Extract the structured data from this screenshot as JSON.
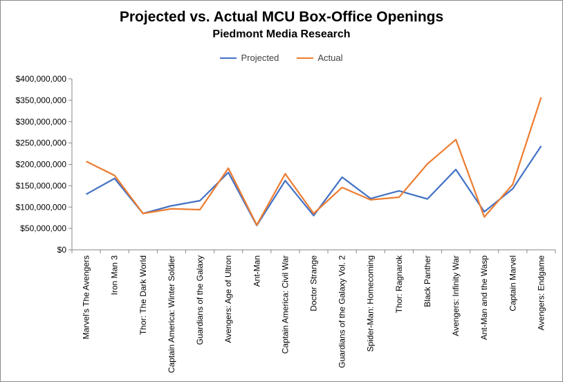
{
  "chart_data": {
    "type": "line",
    "title": "Projected vs. Actual MCU Box-Office Openings",
    "subtitle": "Piedmont Media Research",
    "xlabel": "",
    "ylabel": "",
    "ylim": [
      0,
      400000000
    ],
    "yticks": [
      "$0",
      "$50,000,000",
      "$100,000,000",
      "$150,000,000",
      "$200,000,000",
      "$250,000,000",
      "$300,000,000",
      "$350,000,000",
      "$400,000,000"
    ],
    "grid": false,
    "legend_position": "top",
    "categories": [
      "Marvel's The Avengers",
      "Iron Man 3",
      "Thor: The Dark World",
      "Captain America: Winter Soldier",
      "Guardians of the Galaxy",
      "Avengers: Age of Ultron",
      "Ant-Man",
      "Captain America: Civil War",
      "Doctor Strange",
      "Guardians of the Galaxy Vol. 2",
      "Spider-Man: Homecoming",
      "Thor: Ragnarok",
      "Black Panther",
      "Avengers: Infinity War",
      "Ant-Man and the Wasp",
      "Captain Marvel",
      "Avengers: Endgame"
    ],
    "series": [
      {
        "name": "Projected",
        "color": "#4472C4",
        "values": [
          130000000,
          167000000,
          85000000,
          103000000,
          115000000,
          181000000,
          57000000,
          162000000,
          80000000,
          170000000,
          120000000,
          138000000,
          119000000,
          188000000,
          89000000,
          143000000,
          243000000
        ]
      },
      {
        "name": "Actual",
        "color": "#ED7D31",
        "values": [
          207000000,
          174000000,
          85000000,
          96000000,
          94000000,
          191000000,
          58000000,
          178000000,
          85000000,
          146000000,
          117000000,
          123000000,
          201000000,
          258000000,
          77000000,
          153000000,
          357000000
        ]
      }
    ]
  }
}
